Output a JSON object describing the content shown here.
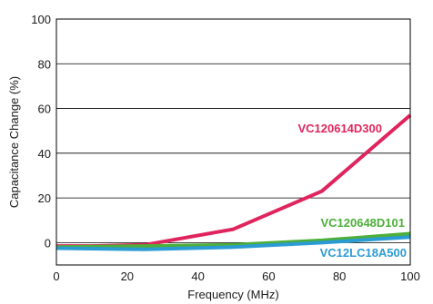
{
  "chart_data": {
    "type": "line",
    "title": "",
    "xlabel": "Frequency (MHz)",
    "ylabel": "Capacitance Change (%)",
    "xlim": [
      0,
      100
    ],
    "ylim": [
      -10,
      100
    ],
    "xticks": [
      0,
      20,
      40,
      60,
      80,
      100
    ],
    "yticks": [
      0,
      20,
      40,
      60,
      80,
      100
    ],
    "grid": "horizontal",
    "legend": "inline labels",
    "series": [
      {
        "name": "VC120614D300",
        "color": "#e0245e",
        "points": [
          [
            0,
            -1.5
          ],
          [
            10,
            -1.5
          ],
          [
            25,
            -1
          ],
          [
            50,
            6
          ],
          [
            75,
            23
          ],
          [
            100,
            57
          ]
        ]
      },
      {
        "name": "VC120648D101",
        "color": "#4caf3a",
        "points": [
          [
            0,
            -2
          ],
          [
            25,
            -1.5
          ],
          [
            50,
            -1
          ],
          [
            75,
            1
          ],
          [
            100,
            4
          ]
        ]
      },
      {
        "name": "VC12LC18A500",
        "color": "#2b9bd3",
        "points": [
          [
            0,
            -2.5
          ],
          [
            25,
            -3
          ],
          [
            50,
            -2
          ],
          [
            75,
            0
          ],
          [
            100,
            2.5
          ]
        ]
      }
    ]
  }
}
